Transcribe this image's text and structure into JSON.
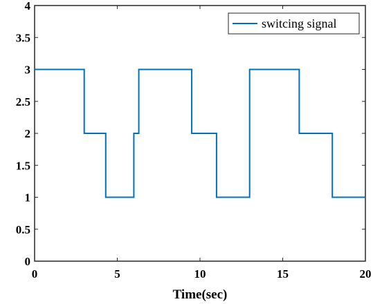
{
  "chart_data": {
    "type": "line",
    "title": "",
    "xlabel": "Time(sec)",
    "ylabel": "",
    "xlim": [
      0,
      20
    ],
    "ylim": [
      0,
      4
    ],
    "xticks": [
      0,
      5,
      10,
      15,
      20
    ],
    "yticks": [
      0,
      0.5,
      1,
      1.5,
      2,
      2.5,
      3,
      3.5,
      4
    ],
    "xtick_labels": [
      "0",
      "5",
      "10",
      "15",
      "20"
    ],
    "ytick_labels": [
      "0",
      "0.5",
      "1",
      "1.5",
      "2",
      "2.5",
      "3",
      "3.5",
      "4"
    ],
    "grid": false,
    "legend_position": "top-right",
    "series": [
      {
        "name": "switcing signal",
        "color": "#0072BD",
        "step": "post",
        "x": [
          0,
          3,
          4.3,
          6,
          6.3,
          9.5,
          11,
          13,
          16,
          18,
          20
        ],
        "y": [
          3,
          2,
          1,
          2,
          3,
          2,
          1,
          3,
          2,
          1,
          1
        ]
      }
    ]
  }
}
